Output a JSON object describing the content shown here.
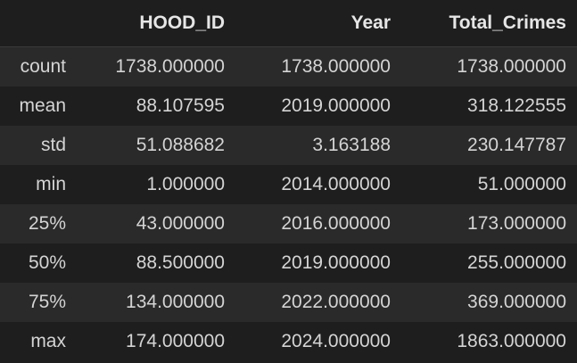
{
  "table": {
    "index_header": "",
    "columns": [
      "HOOD_ID",
      "Year",
      "Total_Crimes"
    ],
    "rows": [
      {
        "label": "count",
        "values": [
          "1738.000000",
          "1738.000000",
          "1738.000000"
        ]
      },
      {
        "label": "mean",
        "values": [
          "88.107595",
          "2019.000000",
          "318.122555"
        ]
      },
      {
        "label": "std",
        "values": [
          "51.088682",
          "3.163188",
          "230.147787"
        ]
      },
      {
        "label": "min",
        "values": [
          "1.000000",
          "2014.000000",
          "51.000000"
        ]
      },
      {
        "label": "25%",
        "values": [
          "43.000000",
          "2016.000000",
          "173.000000"
        ]
      },
      {
        "label": "50%",
        "values": [
          "88.500000",
          "2019.000000",
          "255.000000"
        ]
      },
      {
        "label": "75%",
        "values": [
          "134.000000",
          "2022.000000",
          "369.000000"
        ]
      },
      {
        "label": "max",
        "values": [
          "174.000000",
          "2024.000000",
          "1863.000000"
        ]
      }
    ]
  },
  "colors": {
    "background": "#1e1e1e",
    "row_stripe": "#2a2a2a",
    "text": "#d4d4d4"
  }
}
